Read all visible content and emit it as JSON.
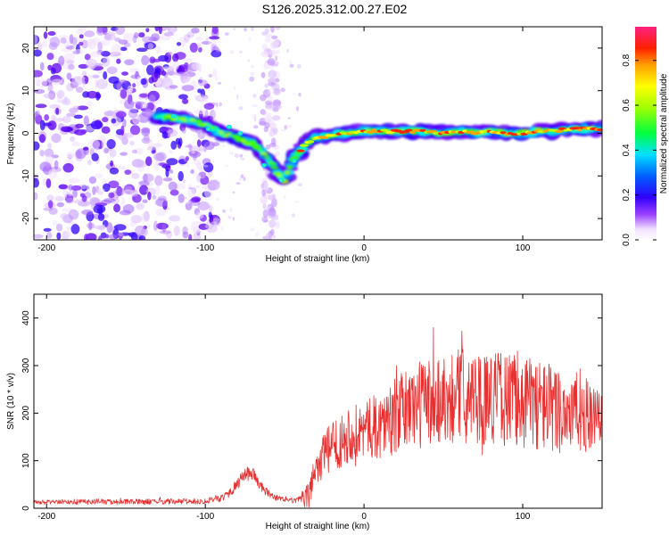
{
  "title": "S126.2025.312.00.27.E02",
  "colors": {
    "snr_line": "#e83030",
    "ridge": "#ff1a1a",
    "frame": "#000000"
  },
  "chart_data": [
    {
      "type": "heatmap",
      "name": "spectrogram",
      "xlabel": "Height of straight line (km)",
      "ylabel": "Frequency (Hz)",
      "xlim": [
        -208,
        150
      ],
      "ylim": [
        -25,
        25
      ],
      "xticks": [
        -200,
        -100,
        0,
        100
      ],
      "yticks": [
        -20,
        -10,
        0,
        10,
        20
      ],
      "ridge_track": {
        "x": [
          -130,
          -115,
          -100,
          -90,
          -80,
          -70,
          -60,
          -55,
          -50,
          -45,
          -40,
          -35,
          -30,
          -20,
          -10,
          0,
          10,
          20,
          30,
          40,
          50,
          60,
          70,
          80,
          90,
          100,
          110,
          120,
          130,
          140,
          150
        ],
        "freq": [
          4,
          3.5,
          2,
          0,
          -1,
          -2.5,
          -6,
          -9,
          -11,
          -6.5,
          -4,
          -2,
          -1,
          -0.5,
          0,
          0.5,
          0.5,
          0.5,
          0.5,
          0.5,
          0,
          0.5,
          0,
          0.5,
          0,
          0,
          0.5,
          0.5,
          1,
          1,
          1
        ]
      },
      "colorbar": {
        "label": "Normalized spectral amplitude",
        "range": [
          0,
          0.95
        ],
        "ticks": [
          "0.0",
          "0.2",
          "0.4",
          "0.6",
          "0.8"
        ]
      }
    },
    {
      "type": "line",
      "name": "snr",
      "xlabel": "Height of straight line (km)",
      "ylabel": "SNR (10 * v/v)",
      "xlim": [
        -208,
        150
      ],
      "ylim": [
        0,
        450
      ],
      "xticks": [
        -200,
        -100,
        0,
        100
      ],
      "yticks": [
        0,
        100,
        200,
        300,
        400
      ],
      "series": [
        {
          "name": "SNR",
          "x": [
            -208,
            -190,
            -170,
            -150,
            -130,
            -110,
            -100,
            -90,
            -85,
            -80,
            -75,
            -70,
            -65,
            -60,
            -55,
            -50,
            -45,
            -40,
            -35,
            -30,
            -25,
            -20,
            -10,
            0,
            10,
            20,
            30,
            40,
            50,
            60,
            70,
            80,
            90,
            100,
            110,
            120,
            130,
            140,
            150
          ],
          "baseline": [
            12,
            13,
            14,
            13,
            14,
            14,
            15,
            22,
            32,
            50,
            70,
            75,
            45,
            30,
            22,
            18,
            15,
            18,
            25,
            90,
            110,
            130,
            155,
            165,
            175,
            195,
            215,
            225,
            230,
            240,
            230,
            235,
            230,
            225,
            220,
            210,
            205,
            195,
            180
          ],
          "noise_amplitude": [
            5,
            5,
            6,
            6,
            6,
            6,
            6,
            8,
            10,
            12,
            15,
            15,
            12,
            8,
            6,
            5,
            5,
            8,
            30,
            45,
            50,
            55,
            60,
            60,
            70,
            80,
            90,
            100,
            100,
            100,
            100,
            100,
            100,
            100,
            100,
            95,
            90,
            80,
            60
          ]
        }
      ]
    }
  ]
}
